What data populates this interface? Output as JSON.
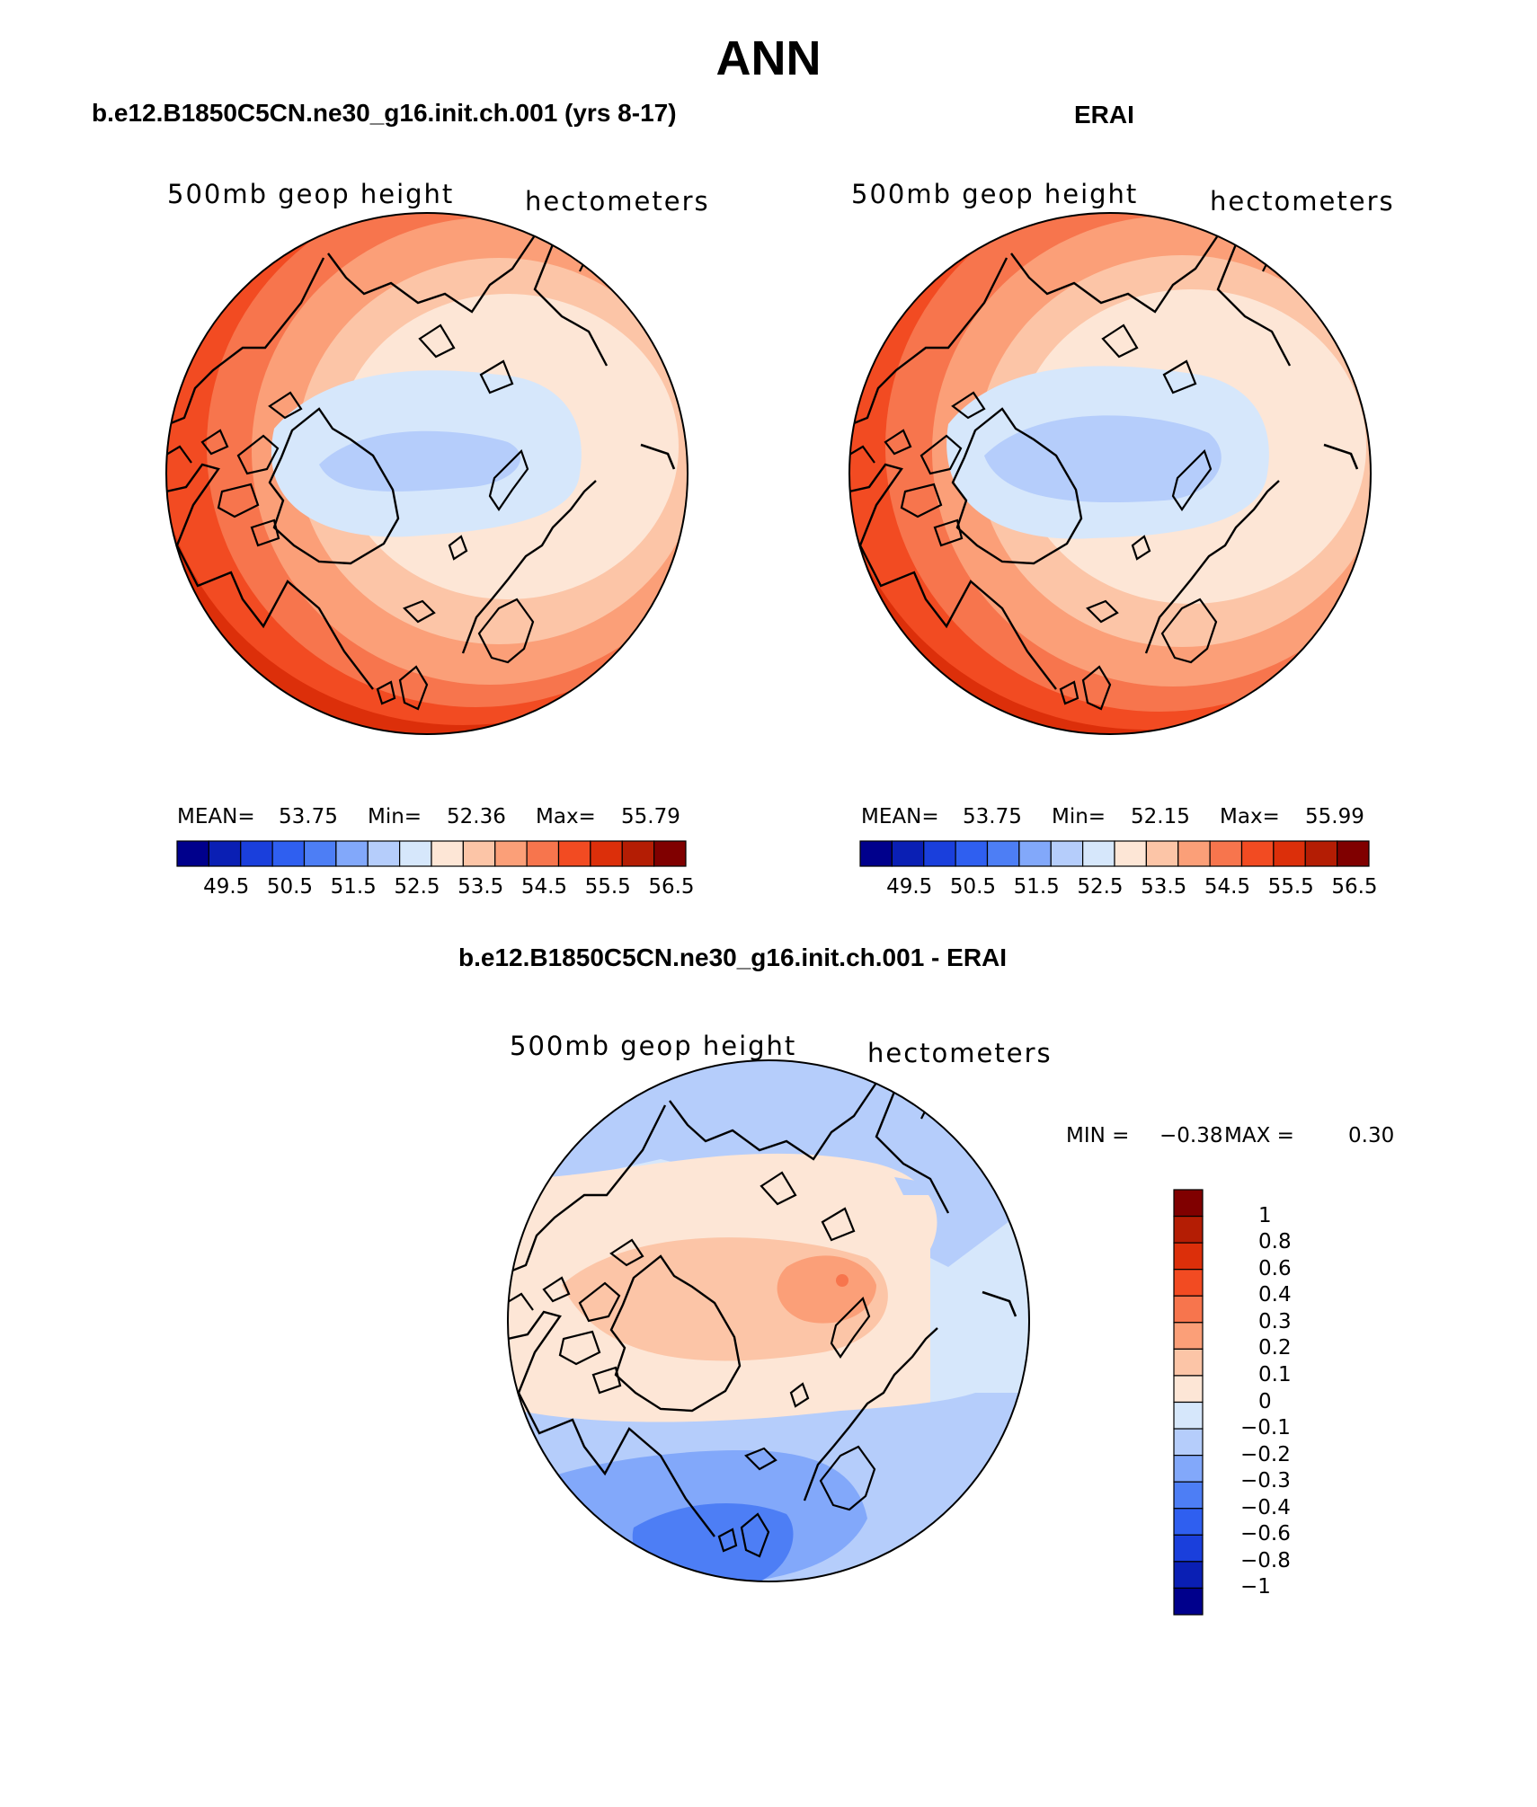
{
  "main_title": "ANN",
  "case_title": "b.e12.B1850C5CN.ne30_g16.init.ch.001 (yrs 8-17)",
  "obs_title": "ERAI",
  "diff_title": "b.e12.B1850C5CN.ne30_g16.init.ch.001 - ERAI",
  "panels": {
    "case": {
      "variable": "500mb geop height",
      "units": "hectometers",
      "mean_label": "MEAN=",
      "mean_value": "53.75",
      "min_label": "Min=",
      "min_value": "52.36",
      "max_label": "Max=",
      "max_value": "55.79"
    },
    "obs": {
      "variable": "500mb geop height",
      "units": "hectometers",
      "mean_label": "MEAN=",
      "mean_value": "53.75",
      "min_label": "Min=",
      "min_value": "52.15",
      "max_label": "Max=",
      "max_value": "55.99"
    },
    "diff": {
      "variable": "500mb geop height",
      "units": "hectometers",
      "min_label": "MIN =",
      "min_value": "−0.38",
      "max_label": "MAX =",
      "max_value": "0.30"
    }
  },
  "colorbar_abs": {
    "tick_labels": [
      "49.5",
      "50.5",
      "51.5",
      "52.5",
      "53.5",
      "54.5",
      "55.5",
      "56.5"
    ],
    "colors": [
      "#00008c",
      "#0a1fb4",
      "#1a3fdc",
      "#2f5ff0",
      "#4d7ef5",
      "#82a8fa",
      "#b5cdfb",
      "#d6e7fb",
      "#fde6d6",
      "#fcc5a7",
      "#fb9f78",
      "#f7754d",
      "#f24b22",
      "#dc2f0a",
      "#b41d04",
      "#800000"
    ]
  },
  "colorbar_diff": {
    "tick_labels": [
      "1",
      "0.8",
      "0.6",
      "0.4",
      "0.3",
      "0.2",
      "0.1",
      "0",
      "−0.1",
      "−0.2",
      "−0.3",
      "−0.4",
      "−0.6",
      "−0.8",
      "−1"
    ],
    "colors": [
      "#800000",
      "#b41d04",
      "#dc2f0a",
      "#f24b22",
      "#f7754d",
      "#fb9f78",
      "#fcc5a7",
      "#fde6d6",
      "#d6e7fb",
      "#b5cdfb",
      "#82a8fa",
      "#4d7ef5",
      "#2f5ff0",
      "#1a3fdc",
      "#0a1fb4",
      "#00008c"
    ]
  }
}
